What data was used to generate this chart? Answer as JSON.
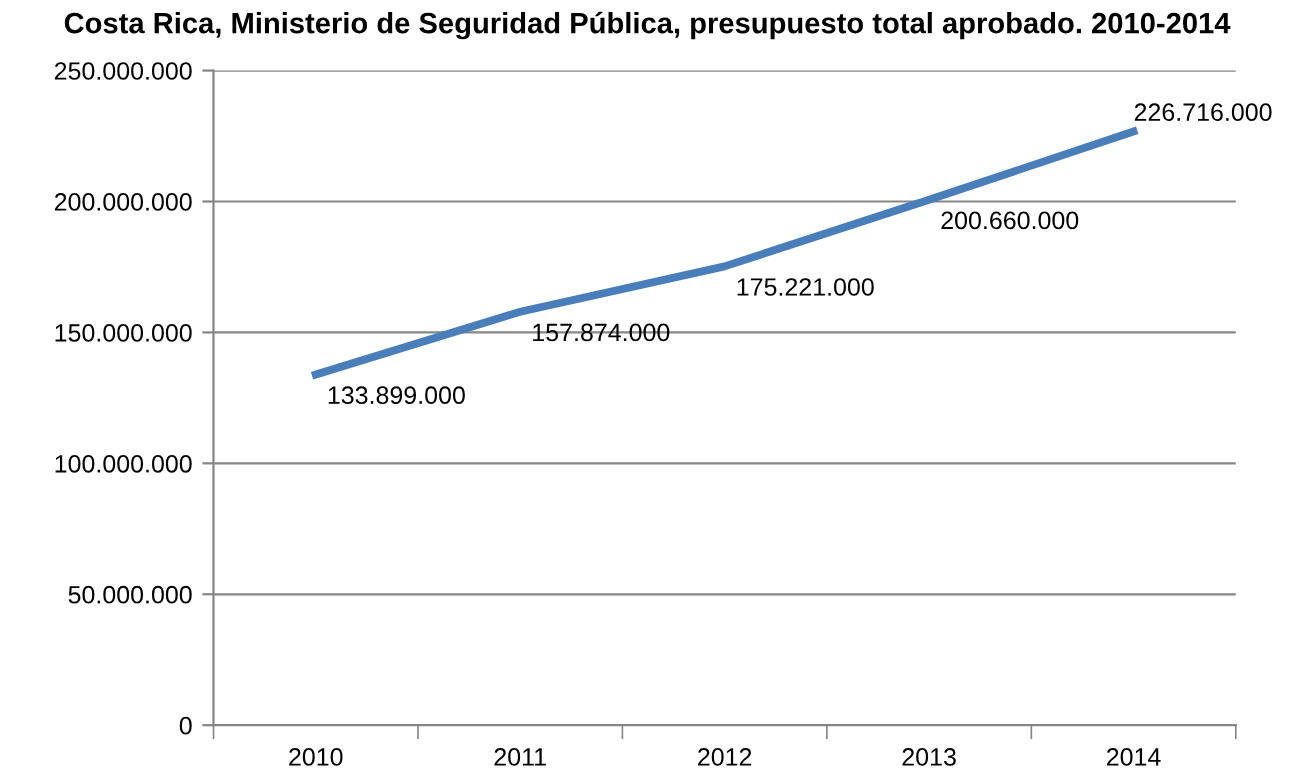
{
  "chart_data": {
    "type": "line",
    "title": "Costa Rica, Ministerio de Seguridad Pública, presupuesto total aprobado. 2010-2014",
    "categories": [
      "2010",
      "2011",
      "2012",
      "2013",
      "2014"
    ],
    "series": [
      {
        "color": "#4a7ebb",
        "values": [
          133899000,
          157874000,
          175221000,
          200660000,
          226716000
        ]
      }
    ],
    "value_labels": [
      "133.899.000",
      "157.874.000",
      "175.221.000",
      "200.660.000",
      "226.716.000"
    ],
    "ylim": [
      0,
      250000000
    ],
    "yticks": [
      {
        "value": 0,
        "label": "0"
      },
      {
        "value": 50000000,
        "label": "50.000.000"
      },
      {
        "value": 100000000,
        "label": "100.000.000"
      },
      {
        "value": 150000000,
        "label": "150.000.000"
      },
      {
        "value": 200000000,
        "label": "200.000.000"
      },
      {
        "value": 250000000,
        "label": "250.000.000"
      }
    ],
    "grid": "y",
    "marker": "none",
    "line_style": "solid",
    "legend": false
  }
}
